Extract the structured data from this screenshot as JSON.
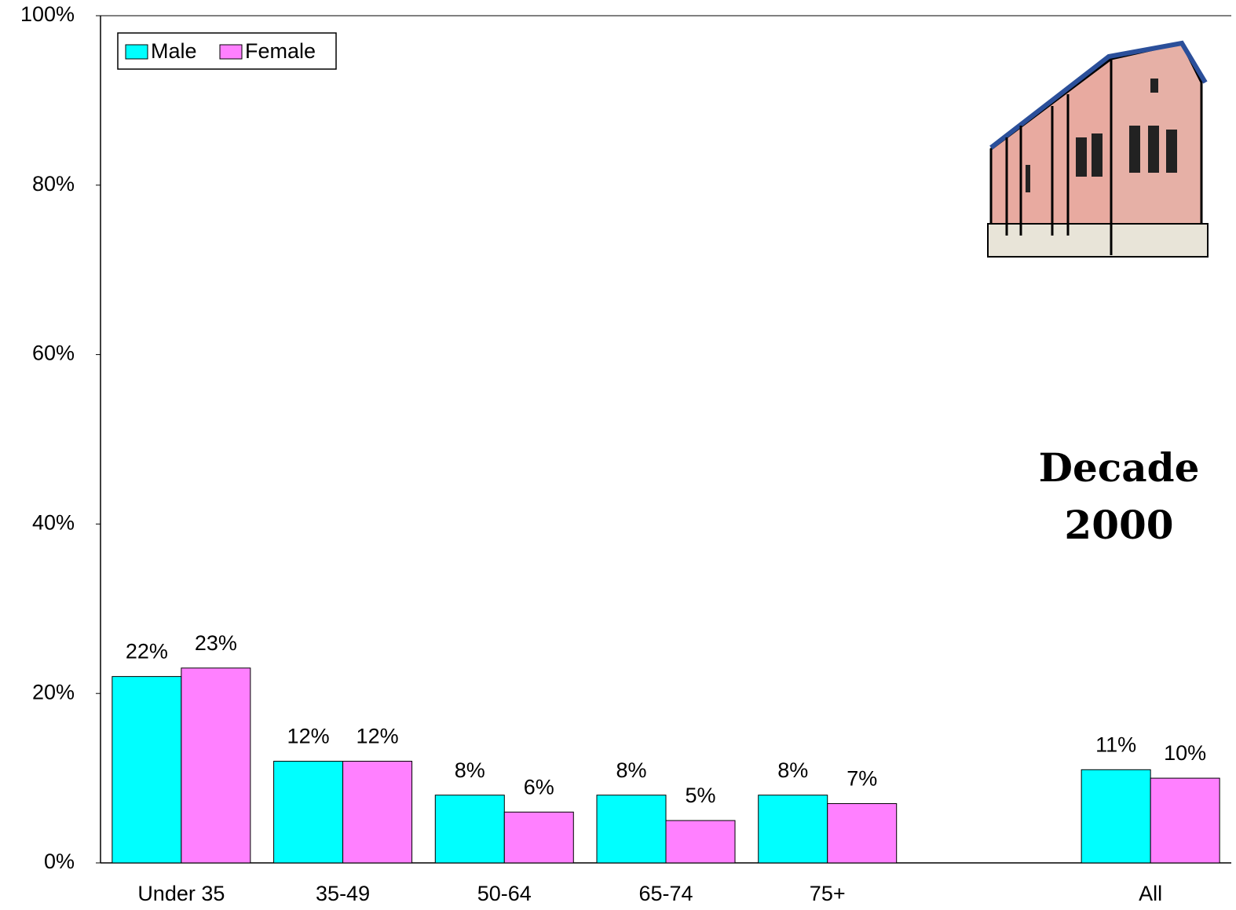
{
  "chart_data": {
    "type": "bar",
    "categories": [
      "Under 35",
      "35-49",
      "50-64",
      "65-74",
      "75+",
      null,
      "All"
    ],
    "series": [
      {
        "name": "Male",
        "color": "#00ffff",
        "values": [
          22,
          12,
          8,
          8,
          8,
          null,
          11
        ],
        "value_labels": [
          "22%",
          "12%",
          "8%",
          "8%",
          "8%",
          null,
          "11%"
        ]
      },
      {
        "name": "Female",
        "color": "#ff80ff",
        "values": [
          23,
          12,
          6,
          5,
          7,
          null,
          10
        ],
        "value_labels": [
          "23%",
          "12%",
          "6%",
          "5%",
          "7%",
          null,
          "10%"
        ]
      }
    ],
    "ylim": [
      0,
      100
    ],
    "yticks": [
      {
        "value": 0,
        "label": "0%"
      },
      {
        "value": 20,
        "label": "20%"
      },
      {
        "value": 40,
        "label": "40%"
      },
      {
        "value": 60,
        "label": "60%"
      },
      {
        "value": 80,
        "label": "80%"
      },
      {
        "value": 100,
        "label": "100%"
      }
    ],
    "grid": false,
    "legend": "top-left",
    "annotation": [
      "Decade",
      "2000"
    ]
  }
}
